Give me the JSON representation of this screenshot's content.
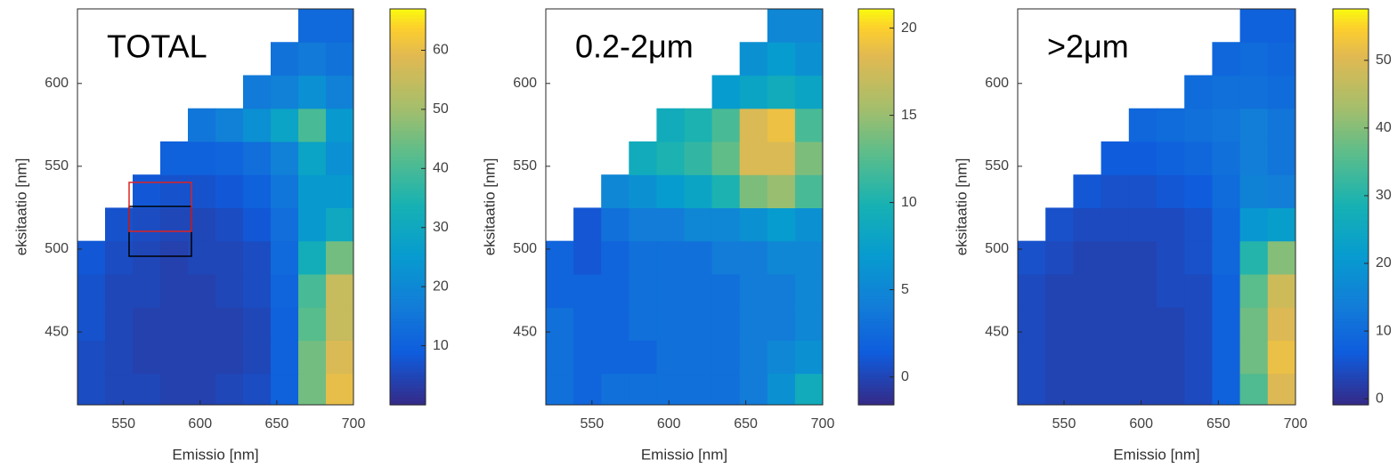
{
  "chart_data": [
    {
      "type": "heatmap",
      "annotation": "TOTAL",
      "x_label": "Emissio [nm]",
      "y_label": "eksitaatio [nm]",
      "x": [
        529,
        547,
        565,
        583,
        601,
        619,
        637,
        655,
        673,
        691
      ],
      "y": [
        415,
        435,
        455,
        475,
        495,
        515,
        535,
        555,
        575,
        595,
        615,
        635
      ],
      "values": [
        [
          6,
          5,
          5,
          4,
          4,
          5,
          6,
          10,
          45,
          60
        ],
        [
          6,
          5,
          4,
          4,
          4,
          4,
          5,
          10,
          45,
          58
        ],
        [
          7,
          5,
          4,
          4,
          4,
          4,
          5,
          10,
          42,
          55
        ],
        [
          7,
          5,
          5,
          4,
          4,
          5,
          6,
          11,
          40,
          55
        ],
        [
          8,
          6,
          5,
          4,
          5,
          5,
          6,
          12,
          32,
          45
        ],
        [
          null,
          7,
          6,
          5,
          5,
          6,
          8,
          13,
          25,
          30
        ],
        [
          null,
          null,
          8,
          7,
          7,
          8,
          10,
          15,
          25,
          25
        ],
        [
          null,
          null,
          null,
          10,
          10,
          11,
          13,
          18,
          28,
          22
        ],
        [
          null,
          null,
          null,
          null,
          15,
          18,
          22,
          28,
          40,
          25
        ],
        [
          null,
          null,
          null,
          null,
          null,
          null,
          16,
          18,
          22,
          18
        ],
        [
          null,
          null,
          null,
          null,
          null,
          null,
          null,
          14,
          16,
          14
        ],
        [
          null,
          null,
          null,
          null,
          null,
          null,
          null,
          null,
          12,
          12
        ]
      ],
      "xlim": [
        520,
        700
      ],
      "ylim": [
        406,
        645
      ],
      "xticks": [
        550,
        600,
        650,
        700
      ],
      "yticks": [
        450,
        500,
        550,
        600
      ],
      "clim": [
        0,
        67
      ],
      "cticks": [
        10,
        20,
        30,
        40,
        50,
        60
      ],
      "colormap": "parula"
    },
    {
      "type": "heatmap",
      "annotation": "0.2-2μm",
      "x_label": "Emissio [nm]",
      "y_label": "eksitaatio [nm]",
      "x": [
        529,
        547,
        565,
        583,
        601,
        619,
        637,
        655,
        673,
        691
      ],
      "y": [
        415,
        435,
        455,
        475,
        495,
        515,
        535,
        555,
        575,
        595,
        615,
        635
      ],
      "values": [
        [
          3,
          2,
          3,
          3,
          3,
          3,
          3,
          4,
          6,
          9
        ],
        [
          3,
          2,
          2,
          2,
          3,
          3,
          3,
          4,
          5,
          6
        ],
        [
          3,
          2,
          2,
          3,
          3,
          3,
          3,
          4,
          4,
          5
        ],
        [
          2,
          2,
          2,
          3,
          3,
          3,
          3,
          4,
          4,
          5
        ],
        [
          2,
          1,
          2,
          3,
          3,
          3,
          4,
          4,
          5,
          5
        ],
        [
          null,
          1,
          3,
          4,
          4,
          5,
          5,
          6,
          7,
          6
        ],
        [
          null,
          null,
          5,
          6,
          7,
          8,
          10,
          14,
          15,
          12
        ],
        [
          null,
          null,
          null,
          9,
          10,
          11,
          13,
          18,
          18,
          14
        ],
        [
          null,
          null,
          null,
          null,
          9,
          10,
          12,
          18,
          19,
          12
        ],
        [
          null,
          null,
          null,
          null,
          null,
          null,
          7,
          8,
          9,
          8
        ],
        [
          null,
          null,
          null,
          null,
          null,
          null,
          null,
          6,
          7,
          6
        ],
        [
          null,
          null,
          null,
          null,
          null,
          null,
          null,
          null,
          5,
          5
        ]
      ],
      "xlim": [
        520,
        700
      ],
      "ylim": [
        406,
        645
      ],
      "xticks": [
        550,
        600,
        650,
        700
      ],
      "yticks": [
        450,
        500,
        550,
        600
      ],
      "clim": [
        -1.6,
        21.1
      ],
      "cticks": [
        0,
        5,
        10,
        15,
        20
      ],
      "colormap": "parula"
    },
    {
      "type": "heatmap",
      "annotation": ">2μm",
      "x_label": "Emissio [nm]",
      "y_label": "eksitaatio [nm]",
      "x": [
        529,
        547,
        565,
        583,
        601,
        619,
        637,
        655,
        673,
        691
      ],
      "y": [
        415,
        435,
        455,
        475,
        495,
        515,
        535,
        555,
        575,
        595,
        615,
        635
      ],
      "values": [
        [
          4,
          3,
          3,
          3,
          3,
          3,
          4,
          8,
          35,
          50
        ],
        [
          4,
          3,
          3,
          3,
          3,
          3,
          4,
          8,
          38,
          52
        ],
        [
          4,
          3,
          3,
          3,
          3,
          3,
          4,
          8,
          38,
          50
        ],
        [
          4,
          3,
          3,
          3,
          3,
          4,
          4,
          8,
          36,
          48
        ],
        [
          5,
          4,
          3,
          3,
          3,
          4,
          5,
          9,
          30,
          40
        ],
        [
          null,
          5,
          4,
          4,
          4,
          4,
          5,
          9,
          20,
          22
        ],
        [
          null,
          null,
          6,
          5,
          5,
          6,
          7,
          10,
          15,
          14
        ],
        [
          null,
          null,
          null,
          7,
          7,
          8,
          9,
          11,
          14,
          12
        ],
        [
          null,
          null,
          null,
          null,
          9,
          10,
          11,
          12,
          14,
          12
        ],
        [
          null,
          null,
          null,
          null,
          null,
          null,
          10,
          11,
          11,
          10
        ],
        [
          null,
          null,
          null,
          null,
          null,
          null,
          null,
          9,
          10,
          9
        ],
        [
          null,
          null,
          null,
          null,
          null,
          null,
          null,
          null,
          8,
          8
        ]
      ],
      "xlim": [
        520,
        700
      ],
      "ylim": [
        406,
        645
      ],
      "xticks": [
        550,
        600,
        650,
        700
      ],
      "yticks": [
        450,
        500,
        550,
        600
      ],
      "clim": [
        -0.9,
        57.6
      ],
      "cticks": [
        0,
        10,
        20,
        30,
        40,
        50
      ],
      "colormap": "parula"
    }
  ]
}
